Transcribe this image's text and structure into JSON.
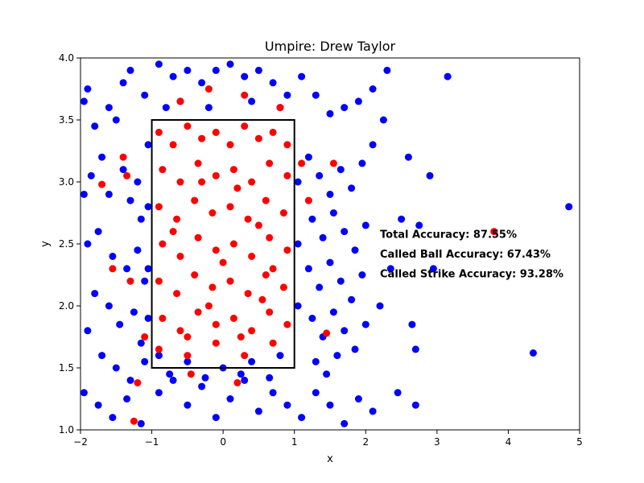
{
  "chart_data": {
    "type": "scatter",
    "title": "Umpire: Drew Taylor",
    "xlabel": "x",
    "ylabel": "y",
    "xlim": [
      -2,
      5
    ],
    "ylim": [
      1.0,
      4.0
    ],
    "xticks": [
      "−2",
      "−1",
      "0",
      "1",
      "2",
      "3",
      "4",
      "5"
    ],
    "xtick_values": [
      -2,
      -1,
      0,
      1,
      2,
      3,
      4,
      5
    ],
    "yticks": [
      "1.0",
      "1.5",
      "2.0",
      "2.5",
      "3.0",
      "3.5",
      "4.0"
    ],
    "ytick_values": [
      1.0,
      1.5,
      2.0,
      2.5,
      3.0,
      3.5,
      4.0
    ],
    "grid": false,
    "strike_zone": {
      "x0": -1,
      "x1": 1,
      "y0": 1.5,
      "y1": 3.5
    },
    "colors": {
      "ball": "#0000ff",
      "strike": "#ff0000",
      "zone": "#000000"
    },
    "annotations": [
      {
        "text": "Total Accuracy: 87.55%",
        "x": 2.2,
        "y": 2.55
      },
      {
        "text": "Called Ball Accuracy: 67.43%",
        "x": 2.2,
        "y": 2.39
      },
      {
        "text": "Called Strike Accuracy: 93.28%",
        "x": 2.2,
        "y": 2.23
      }
    ],
    "series": [
      {
        "color": "#0000ff",
        "points": [
          [
            -1.9,
            3.75
          ],
          [
            -1.95,
            3.65
          ],
          [
            -1.8,
            3.45
          ],
          [
            -1.6,
            3.6
          ],
          [
            -1.4,
            3.8
          ],
          [
            -1.5,
            3.5
          ],
          [
            -1.3,
            3.9
          ],
          [
            -1.1,
            3.7
          ],
          [
            -0.9,
            3.95
          ],
          [
            -0.7,
            3.85
          ],
          [
            -0.5,
            3.9
          ],
          [
            -0.3,
            3.8
          ],
          [
            -0.1,
            3.9
          ],
          [
            0.1,
            3.95
          ],
          [
            0.3,
            3.85
          ],
          [
            0.5,
            3.9
          ],
          [
            0.7,
            3.8
          ],
          [
            0.9,
            3.7
          ],
          [
            1.1,
            3.85
          ],
          [
            1.3,
            3.7
          ],
          [
            1.5,
            3.55
          ],
          [
            1.7,
            3.6
          ],
          [
            1.9,
            3.65
          ],
          [
            2.1,
            3.75
          ],
          [
            2.3,
            3.9
          ],
          [
            -1.7,
            3.2
          ],
          [
            -1.85,
            3.05
          ],
          [
            -1.95,
            2.9
          ],
          [
            -1.6,
            2.9
          ],
          [
            -1.4,
            3.1
          ],
          [
            -1.3,
            2.85
          ],
          [
            -1.2,
            3.0
          ],
          [
            -1.15,
            2.7
          ],
          [
            -1.75,
            2.6
          ],
          [
            -1.9,
            2.5
          ],
          [
            -1.55,
            2.4
          ],
          [
            -1.35,
            2.3
          ],
          [
            -1.2,
            2.45
          ],
          [
            -1.1,
            2.2
          ],
          [
            -1.8,
            2.1
          ],
          [
            -1.6,
            2.0
          ],
          [
            -1.45,
            1.85
          ],
          [
            -1.25,
            1.95
          ],
          [
            -1.15,
            1.7
          ],
          [
            -1.9,
            1.8
          ],
          [
            -1.7,
            1.6
          ],
          [
            -1.5,
            1.5
          ],
          [
            -1.3,
            1.4
          ],
          [
            -1.1,
            1.55
          ],
          [
            -1.95,
            1.3
          ],
          [
            -1.75,
            1.2
          ],
          [
            -1.55,
            1.1
          ],
          [
            -1.35,
            1.25
          ],
          [
            -1.15,
            1.05
          ],
          [
            -0.9,
            1.3
          ],
          [
            -0.7,
            1.4
          ],
          [
            -0.5,
            1.2
          ],
          [
            -0.3,
            1.35
          ],
          [
            -0.1,
            1.1
          ],
          [
            0.1,
            1.25
          ],
          [
            0.3,
            1.4
          ],
          [
            0.5,
            1.15
          ],
          [
            0.7,
            1.3
          ],
          [
            0.9,
            1.2
          ],
          [
            1.1,
            1.1
          ],
          [
            1.3,
            1.3
          ],
          [
            1.5,
            1.2
          ],
          [
            1.7,
            1.05
          ],
          [
            1.9,
            1.25
          ],
          [
            2.1,
            1.15
          ],
          [
            1.2,
            3.2
          ],
          [
            1.35,
            3.05
          ],
          [
            1.5,
            2.9
          ],
          [
            1.65,
            3.1
          ],
          [
            1.8,
            2.95
          ],
          [
            1.95,
            3.15
          ],
          [
            1.25,
            2.7
          ],
          [
            1.4,
            2.55
          ],
          [
            1.55,
            2.75
          ],
          [
            1.7,
            2.6
          ],
          [
            1.85,
            2.45
          ],
          [
            2.0,
            2.65
          ],
          [
            1.2,
            2.3
          ],
          [
            1.35,
            2.15
          ],
          [
            1.5,
            2.35
          ],
          [
            1.65,
            2.2
          ],
          [
            1.8,
            2.05
          ],
          [
            1.95,
            2.25
          ],
          [
            1.25,
            1.9
          ],
          [
            1.4,
            1.75
          ],
          [
            1.55,
            1.95
          ],
          [
            1.7,
            1.8
          ],
          [
            1.85,
            1.65
          ],
          [
            2.0,
            1.85
          ],
          [
            1.3,
            1.55
          ],
          [
            1.45,
            1.45
          ],
          [
            1.6,
            1.6
          ],
          [
            2.2,
            2.0
          ],
          [
            2.35,
            2.3
          ],
          [
            2.5,
            2.7
          ],
          [
            2.6,
            3.2
          ],
          [
            2.9,
            3.05
          ],
          [
            3.15,
            3.85
          ],
          [
            2.75,
            2.65
          ],
          [
            2.95,
            2.3
          ],
          [
            2.65,
            1.85
          ],
          [
            2.7,
            1.65
          ],
          [
            2.45,
            1.3
          ],
          [
            2.7,
            1.2
          ],
          [
            4.35,
            1.62
          ],
          [
            4.85,
            2.8
          ],
          [
            2.25,
            3.5
          ],
          [
            2.1,
            3.3
          ],
          [
            -0.8,
            3.6
          ],
          [
            -0.6,
            3.65
          ],
          [
            -0.2,
            3.6
          ],
          [
            0.4,
            3.65
          ],
          [
            0.8,
            3.6
          ],
          [
            -0.9,
            1.6
          ],
          [
            -0.5,
            1.55
          ],
          [
            0.0,
            1.5
          ],
          [
            0.4,
            1.55
          ],
          [
            0.8,
            1.6
          ],
          [
            -0.75,
            1.45
          ],
          [
            -0.25,
            1.42
          ],
          [
            0.25,
            1.45
          ],
          [
            0.65,
            1.42
          ],
          [
            -1.05,
            3.3
          ],
          [
            -1.05,
            2.8
          ],
          [
            -1.05,
            2.3
          ],
          [
            -1.05,
            1.9
          ],
          [
            1.05,
            3.0
          ],
          [
            1.05,
            2.5
          ],
          [
            1.05,
            2.0
          ]
        ]
      },
      {
        "color": "#ff0000",
        "points": [
          [
            -0.9,
            3.4
          ],
          [
            -0.7,
            3.3
          ],
          [
            -0.5,
            3.45
          ],
          [
            -0.3,
            3.35
          ],
          [
            -0.1,
            3.4
          ],
          [
            0.1,
            3.3
          ],
          [
            0.3,
            3.45
          ],
          [
            0.5,
            3.35
          ],
          [
            0.7,
            3.4
          ],
          [
            0.9,
            3.3
          ],
          [
            -0.85,
            3.1
          ],
          [
            -0.6,
            3.0
          ],
          [
            -0.35,
            3.15
          ],
          [
            -0.1,
            3.05
          ],
          [
            0.15,
            3.1
          ],
          [
            0.4,
            3.0
          ],
          [
            0.65,
            3.15
          ],
          [
            0.9,
            3.05
          ],
          [
            -0.9,
            2.8
          ],
          [
            -0.65,
            2.7
          ],
          [
            -0.4,
            2.85
          ],
          [
            -0.15,
            2.75
          ],
          [
            0.1,
            2.8
          ],
          [
            0.35,
            2.7
          ],
          [
            0.6,
            2.85
          ],
          [
            0.85,
            2.75
          ],
          [
            -0.85,
            2.5
          ],
          [
            -0.6,
            2.4
          ],
          [
            -0.35,
            2.55
          ],
          [
            -0.1,
            2.45
          ],
          [
            0.15,
            2.5
          ],
          [
            0.4,
            2.4
          ],
          [
            0.65,
            2.55
          ],
          [
            0.9,
            2.45
          ],
          [
            -0.9,
            2.2
          ],
          [
            -0.65,
            2.1
          ],
          [
            -0.4,
            2.25
          ],
          [
            -0.15,
            2.15
          ],
          [
            0.1,
            2.2
          ],
          [
            0.35,
            2.1
          ],
          [
            0.6,
            2.25
          ],
          [
            0.85,
            2.15
          ],
          [
            -0.85,
            1.9
          ],
          [
            -0.6,
            1.8
          ],
          [
            -0.35,
            1.95
          ],
          [
            -0.1,
            1.85
          ],
          [
            0.15,
            1.9
          ],
          [
            0.4,
            1.8
          ],
          [
            0.65,
            1.95
          ],
          [
            0.9,
            1.85
          ],
          [
            -0.9,
            1.65
          ],
          [
            -0.5,
            1.6
          ],
          [
            -0.1,
            1.7
          ],
          [
            0.3,
            1.6
          ],
          [
            0.7,
            1.7
          ],
          [
            -1.7,
            2.98
          ],
          [
            -1.35,
            3.05
          ],
          [
            -1.4,
            3.2
          ],
          [
            -1.55,
            2.3
          ],
          [
            -1.3,
            2.2
          ],
          [
            -1.1,
            1.75
          ],
          [
            -1.2,
            1.38
          ],
          [
            -1.25,
            1.07
          ],
          [
            -0.45,
            1.45
          ],
          [
            0.2,
            1.38
          ],
          [
            1.45,
            1.78
          ],
          [
            1.2,
            2.85
          ],
          [
            1.1,
            3.15
          ],
          [
            1.55,
            3.15
          ],
          [
            3.8,
            2.6
          ],
          [
            -0.2,
            3.75
          ],
          [
            0.3,
            3.7
          ],
          [
            -0.6,
            3.65
          ],
          [
            0.8,
            3.6
          ],
          [
            -0.3,
            3.0
          ],
          [
            0.2,
            2.95
          ],
          [
            0.5,
            2.65
          ],
          [
            -0.7,
            2.6
          ],
          [
            0.0,
            2.35
          ],
          [
            0.7,
            2.3
          ],
          [
            -0.2,
            2.0
          ],
          [
            0.55,
            2.05
          ],
          [
            -0.5,
            1.75
          ],
          [
            0.25,
            1.75
          ]
        ]
      }
    ]
  }
}
